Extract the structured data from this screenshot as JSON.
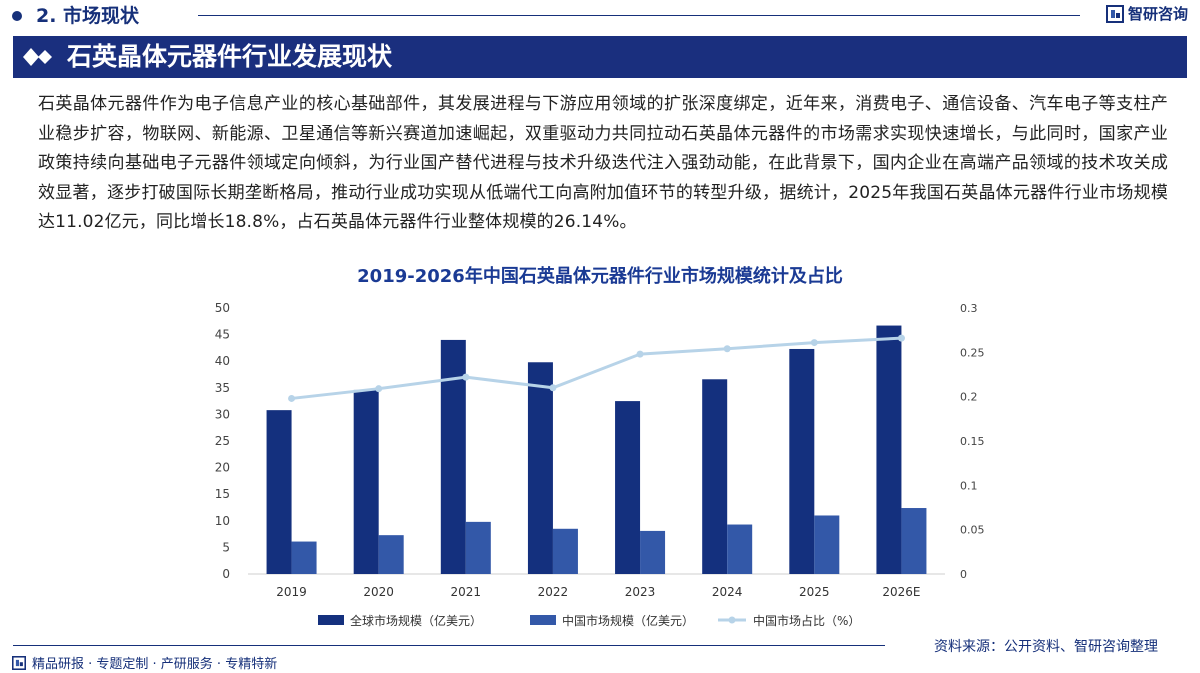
{
  "header": {
    "section": "2. 市场现状",
    "brand": "智研咨询"
  },
  "banner": {
    "title": "石英晶体元器件行业发展现状"
  },
  "paragraph": "石英晶体元器件作为电子信息产业的核心基础部件，其发展进程与下游应用领域的扩张深度绑定，近年来，消费电子、通信设备、汽车电子等支柱产业稳步扩容，物联网、新能源、卫星通信等新兴赛道加速崛起，双重驱动力共同拉动石英晶体元器件的市场需求实现快速增长，与此同时，国家产业政策持续向基础电子元器件领域定向倾斜，为行业国产替代进程与技术升级迭代注入强劲动能，在此背景下，国内企业在高端产品领域的技术攻关成效显著，逐步打破国际长期垄断格局，推动行业成功实现从低端代工向高附加值环节的转型升级，据统计，2025年我国石英晶体元器件行业市场规模达11.02亿元，同比增长18.8%，占石英晶体元器件行业整体规模的26.14%。",
  "chart_data": {
    "type": "bar",
    "title": "2019-2026年中国石英晶体元器件行业市场规模统计及占比",
    "categories": [
      "2019",
      "2020",
      "2021",
      "2022",
      "2023",
      "2024",
      "2025",
      "2026E"
    ],
    "series": [
      {
        "name": "全球市场规模（亿美元）",
        "type": "bar",
        "axis": "left",
        "color": "#14307e",
        "values": [
          30.8,
          34.6,
          44.0,
          39.8,
          32.5,
          36.6,
          42.3,
          46.7
        ]
      },
      {
        "name": "中国市场规模（亿美元）",
        "type": "bar",
        "axis": "left",
        "color": "#3358a8",
        "values": [
          6.1,
          7.3,
          9.8,
          8.5,
          8.1,
          9.3,
          11.0,
          12.4
        ]
      },
      {
        "name": "中国市场占比（%）",
        "type": "line",
        "axis": "right",
        "color": "#b7d3e8",
        "values": [
          0.198,
          0.209,
          0.222,
          0.21,
          0.248,
          0.254,
          0.261,
          0.266
        ]
      }
    ],
    "ylim_left": [
      0,
      50
    ],
    "yticks_left": [
      "0",
      "5",
      "10",
      "15",
      "20",
      "25",
      "30",
      "35",
      "40",
      "45",
      "50"
    ],
    "ylim_right": [
      0,
      0.3
    ],
    "yticks_right": [
      "0",
      "0.05",
      "0.1",
      "0.15",
      "0.2",
      "0.25",
      "0.3"
    ],
    "legend": "bottom",
    "grid": false
  },
  "footer": {
    "tagline": "精品研报 · 专题定制 · 产研服务 · 专精特新",
    "source": "资料来源：公开资料、智研咨询整理"
  }
}
